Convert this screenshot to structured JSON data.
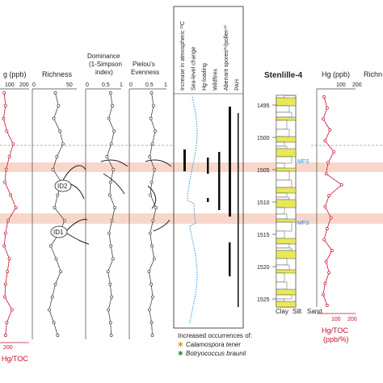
{
  "chart_data": [
    {
      "type": "line",
      "panel": "hg-left",
      "xlabel": "Hg (ppb)",
      "xlabel_visible": "g (ppb)",
      "x_ticks": [
        "100",
        "200"
      ],
      "bottom_label": "Hg/TOC",
      "bottom_ticks": [
        "200"
      ],
      "series": [
        {
          "name": "Hg",
          "values": [
            20,
            30,
            15,
            40,
            90,
            60,
            35,
            25,
            70,
            110,
            50,
            30,
            20,
            60,
            45,
            30,
            25,
            80,
            40,
            30
          ]
        }
      ]
    },
    {
      "type": "line",
      "panel": "richness",
      "xlabel": "Richness",
      "x_ticks": [
        "0",
        "50"
      ],
      "annotations": [
        "ID2",
        "ID1"
      ],
      "series": [
        {
          "name": "Richness",
          "values": [
            30,
            34,
            28,
            36,
            40,
            32,
            27,
            38,
            33,
            29,
            42,
            35,
            24,
            31,
            37,
            30,
            26,
            22,
            28,
            33
          ]
        }
      ]
    },
    {
      "type": "line",
      "panel": "dominance",
      "xlabel": "Dominance (1-Simpson index)",
      "xlabel_lines": [
        "Dominance",
        "(1-Simpson",
        "index)"
      ],
      "x_ticks": [
        "0",
        "0.5",
        "1"
      ],
      "series": [
        {
          "name": "Dominance",
          "values": [
            0.7,
            0.75,
            0.65,
            0.8,
            0.72,
            0.6,
            0.78,
            0.7,
            0.68,
            0.82,
            0.74,
            0.66,
            0.71,
            0.77,
            0.63,
            0.69,
            0.73,
            0.64,
            0.7,
            0.72
          ]
        }
      ]
    },
    {
      "type": "line",
      "panel": "evenness",
      "xlabel": "Pielou's Evenness",
      "xlabel_lines": [
        "Pielou's",
        "Evenness"
      ],
      "x_ticks": [
        "0",
        "0.5",
        "1"
      ],
      "series": [
        {
          "name": "Evenness",
          "values": [
            0.6,
            0.65,
            0.58,
            0.7,
            0.62,
            0.55,
            0.68,
            0.6,
            0.57,
            0.72,
            0.64,
            0.56,
            0.61,
            0.67,
            0.53,
            0.59,
            0.63,
            0.54,
            0.6,
            0.62
          ]
        }
      ]
    },
    {
      "type": "table",
      "panel": "events",
      "columns": [
        "Increase in atmospheric ¹³C",
        "Sea-level change",
        "Hg-loading",
        "Wildfires",
        "Aberrant spores²⁶/pollen⁴¹",
        "PAH"
      ]
    },
    {
      "type": "line",
      "panel": "hg-right",
      "title": "Stenlille-4",
      "y_ticks": [
        "1495",
        "1500",
        "1505",
        "1510",
        "1515",
        "1520",
        "1525"
      ],
      "y_range": [
        1492,
        1526
      ],
      "markers": [
        "MFS",
        "MFS"
      ],
      "lithology_labels": [
        "Clay",
        "Silt",
        "Sand"
      ],
      "xlabel": "Hg (ppb)",
      "xlabel_visible": "Hg (ppb)",
      "x_ticks": [
        "100",
        "200"
      ],
      "bottom_label_lines": [
        "Hg/TOC",
        "(ppb/%)"
      ],
      "series": [
        {
          "name": "Hg",
          "values": [
            30,
            45,
            25,
            60,
            35,
            80,
            50,
            40,
            120,
            55,
            35,
            65,
            45,
            30,
            70,
            40,
            55,
            35,
            25,
            45
          ]
        }
      ]
    }
  ],
  "headers": {
    "hg_left": "g (ppb)",
    "richness": "Richness",
    "dominance_1": "Dominance",
    "dominance_2": "(1-Simpson",
    "dominance_3": "index)",
    "evenness_1": "Pielou's",
    "evenness_2": "Evenness",
    "section": "Stenlille-4",
    "hg_right": "Hg (ppb)",
    "richness_right": "Richn"
  },
  "ticks": {
    "hg_left": [
      "100",
      "200"
    ],
    "richness": [
      "0",
      "50"
    ],
    "dominance": [
      "0",
      "0.5",
      "1"
    ],
    "evenness": [
      "0",
      "0.5",
      "1"
    ],
    "hg_right": [
      "100",
      "200"
    ],
    "depth": [
      "1495",
      "1500",
      "1505",
      "1510",
      "1515",
      "1520",
      "1525"
    ]
  },
  "event_columns": [
    "Increase in atmospheric ¹³C",
    "Sea-level change",
    "Hg-loading",
    "Wildfires",
    "Aberrant spores²⁶/pollen⁴¹",
    "PAH"
  ],
  "labels": {
    "id2": "ID2",
    "id1": "ID1",
    "mfs_top": "MFS",
    "mfs_bottom": "MFS",
    "clay": "Clay",
    "silt": "Silt",
    "sand": "Sand",
    "hgtoc_left": "Hg/TOC",
    "hgtoc_left_tick": "200",
    "hgtoc_right_1": "Hg/TOC",
    "hgtoc_right_2": "(ppb/%)"
  },
  "legend": {
    "title": "Increased occurrences of:",
    "items": [
      {
        "text": "Calamospora tener",
        "color": "#d4a017"
      },
      {
        "text": "Botryococcus braunii",
        "color": "#3a8a3a"
      }
    ]
  },
  "colors": {
    "highlight_band": "#f6c9b8",
    "hg_red": "#c8102e",
    "sea_level_blue": "#2b8fd6",
    "sandstone_yellow": "#e8e85a"
  }
}
